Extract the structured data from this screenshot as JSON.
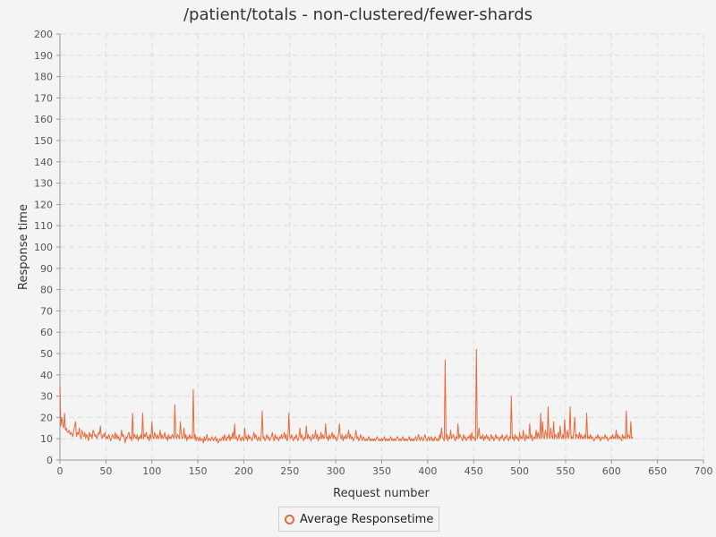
{
  "chart_data": {
    "type": "line",
    "title": "/patient/totals - non-clustered/fewer-shards",
    "xlabel": "Request number",
    "ylabel": "Response time",
    "xlim": [
      0,
      700
    ],
    "ylim": [
      0,
      200
    ],
    "x_ticks": [
      0,
      50,
      100,
      150,
      200,
      250,
      300,
      350,
      400,
      450,
      500,
      550,
      600,
      650,
      700
    ],
    "y_ticks": [
      0,
      10,
      20,
      30,
      40,
      50,
      60,
      70,
      80,
      90,
      100,
      110,
      120,
      130,
      140,
      150,
      160,
      170,
      180,
      190,
      200
    ],
    "grid": true,
    "legend_position": "bottom",
    "series": [
      {
        "name": "Average Responsetime",
        "color": "#e8693a",
        "x_start": 0,
        "x_step": 1,
        "values": [
          35,
          16,
          20,
          17,
          15,
          22,
          14,
          15,
          13,
          13,
          14,
          12,
          13,
          12,
          11,
          14,
          16,
          18,
          11,
          13,
          12,
          15,
          11,
          10,
          14,
          12,
          11,
          13,
          10,
          12,
          11,
          9,
          13,
          11,
          12,
          10,
          14,
          13,
          11,
          12,
          10,
          11,
          13,
          12,
          16,
          11,
          10,
          12,
          11,
          13,
          10,
          11,
          10,
          12,
          11,
          9,
          10,
          12,
          11,
          10,
          13,
          10,
          12,
          10,
          11,
          9,
          10,
          14,
          11,
          12,
          10,
          8,
          11,
          10,
          12,
          13,
          10,
          11,
          9,
          22,
          10,
          12,
          11,
          10,
          12,
          9,
          11,
          10,
          12,
          10,
          22,
          10,
          12,
          11,
          13,
          10,
          11,
          9,
          12,
          10,
          18,
          11,
          10,
          13,
          11,
          10,
          12,
          10,
          11,
          14,
          10,
          12,
          10,
          11,
          13,
          10,
          11,
          9,
          12,
          10,
          11,
          10,
          12,
          11,
          10,
          26,
          11,
          10,
          12,
          11,
          10,
          18,
          12,
          10,
          11,
          15,
          10,
          12,
          9,
          11,
          10,
          12,
          10,
          11,
          10,
          33,
          10,
          12,
          9,
          11,
          10,
          9,
          11,
          9,
          10,
          10,
          8,
          11,
          9,
          10,
          12,
          9,
          10,
          10,
          9,
          11,
          10,
          9,
          10,
          11,
          9,
          10,
          8,
          9,
          10,
          9,
          10,
          11,
          9,
          12,
          10,
          9,
          11,
          10,
          12,
          9,
          11,
          10,
          13,
          10,
          17,
          10,
          11,
          9,
          10,
          12,
          10,
          9,
          11,
          10,
          9,
          15,
          10,
          11,
          9,
          12,
          10,
          11,
          10,
          9,
          11,
          13,
          10,
          12,
          10,
          9,
          11,
          10,
          9,
          12,
          23,
          10,
          11,
          9,
          10,
          12,
          10,
          11,
          9,
          10,
          11,
          13,
          10,
          9,
          12,
          10,
          11,
          10,
          9,
          11,
          10,
          12,
          10,
          11,
          13,
          10,
          12,
          9,
          10,
          22,
          11,
          10,
          12,
          10,
          9,
          11,
          10,
          12,
          10,
          9,
          11,
          15,
          10,
          12,
          10,
          9,
          11,
          10,
          16,
          10,
          12,
          10,
          11,
          9,
          10,
          12,
          10,
          11,
          14,
          10,
          12,
          9,
          11,
          10,
          13,
          10,
          12,
          10,
          11,
          17,
          10,
          11,
          9,
          12,
          10,
          11,
          13,
          10,
          12,
          10,
          11,
          9,
          10,
          12,
          17,
          11,
          10,
          12,
          9,
          11,
          10,
          12,
          10,
          11,
          14,
          10,
          12,
          10,
          11,
          9,
          10,
          11,
          14,
          10,
          11,
          9,
          10,
          12,
          10,
          9,
          11,
          10,
          9,
          10,
          9,
          10,
          11,
          9,
          10,
          9,
          10,
          9,
          10,
          9,
          10,
          11,
          10,
          9,
          10,
          9,
          10,
          9,
          10,
          11,
          9,
          10,
          9,
          10,
          9,
          10,
          11,
          9,
          10,
          9,
          10,
          9,
          10,
          11,
          10,
          9,
          10,
          9,
          10,
          11,
          9,
          10,
          9,
          10,
          9,
          10,
          11,
          9,
          10,
          9,
          10,
          9,
          10,
          11,
          9,
          10,
          12,
          10,
          9,
          11,
          10,
          9,
          10,
          12,
          10,
          9,
          10,
          11,
          9,
          10,
          11,
          9,
          10,
          9,
          11,
          10,
          9,
          10,
          9,
          12,
          10,
          15,
          11,
          10,
          9,
          47,
          10,
          12,
          9,
          11,
          10,
          14,
          10,
          11,
          12,
          10,
          9,
          11,
          10,
          17,
          10,
          12,
          11,
          10,
          9,
          12,
          10,
          11,
          9,
          10,
          11,
          10,
          12,
          9,
          13,
          10,
          11,
          10,
          9,
          52,
          10,
          12,
          15,
          10,
          11,
          10,
          12,
          9,
          11,
          10,
          12,
          10,
          11,
          9,
          10,
          12,
          10,
          11,
          9,
          10,
          12,
          10,
          11,
          10,
          9,
          11,
          10,
          12,
          10,
          9,
          11,
          10,
          12,
          10,
          9,
          11,
          10,
          30,
          10,
          11,
          9,
          12,
          10,
          11,
          10,
          9,
          13,
          10,
          11,
          10,
          14,
          10,
          9,
          12,
          10,
          11,
          10,
          17,
          10,
          12,
          9,
          10,
          11,
          10,
          14,
          10,
          13,
          11,
          10,
          22,
          10,
          18,
          11,
          10,
          14,
          12,
          10,
          25,
          11,
          10,
          15,
          11,
          10,
          18,
          10,
          12,
          11,
          10,
          13,
          10,
          16,
          11,
          10,
          12,
          10,
          19,
          10,
          11,
          14,
          10,
          12,
          25,
          10,
          11,
          10,
          14,
          20,
          10,
          12,
          11,
          10,
          13,
          10,
          12,
          10,
          11,
          10,
          12,
          10,
          22,
          10,
          11,
          10,
          12,
          10,
          11,
          10,
          9,
          10,
          11,
          10,
          12,
          10,
          11,
          9,
          10,
          11,
          10,
          10,
          12,
          10,
          11,
          9,
          10,
          10,
          11,
          10,
          12,
          10,
          11,
          10,
          14,
          10,
          12,
          10,
          11,
          10,
          9,
          12,
          10,
          11,
          10,
          23,
          10,
          12,
          11,
          10,
          18,
          10,
          11
        ]
      }
    ]
  }
}
